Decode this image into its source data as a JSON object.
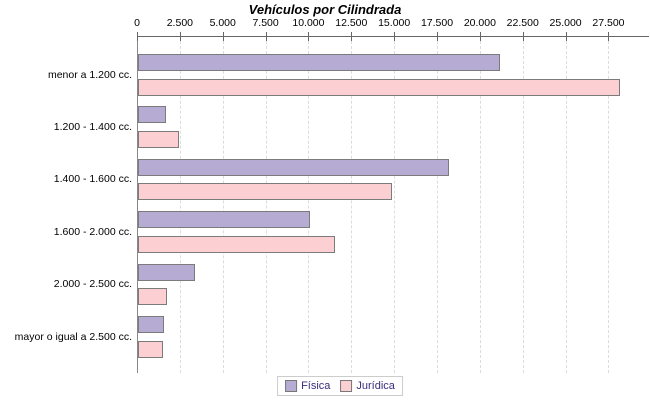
{
  "chart_data": {
    "type": "bar",
    "orientation": "horizontal",
    "title": "Vehículos por Cilindrada",
    "categories": [
      "menor a 1.200 cc.",
      "1.200 - 1.400 cc.",
      "1.400 - 1.600 cc.",
      "1.600 - 2.000 cc.",
      "2.000 - 2.500 cc.",
      "mayor o igual a 2.500 cc."
    ],
    "series": [
      {
        "name": "Física",
        "color": "#b5abd3",
        "values": [
          21000,
          1500,
          18000,
          9900,
          3200,
          1400
        ]
      },
      {
        "name": "Jurídica",
        "color": "#fccfd2",
        "values": [
          28000,
          2300,
          14700,
          11400,
          1600,
          1350
        ]
      }
    ],
    "x_ticks": [
      0,
      2500,
      5000,
      7500,
      10000,
      12500,
      15000,
      17500,
      20000,
      22500,
      25000,
      27500
    ],
    "x_tick_labels": [
      "0",
      "2.500",
      "5.000",
      "7.500",
      "10.000",
      "12.500",
      "15.000",
      "17.500",
      "20.000",
      "22.500",
      "25.000",
      "27.500"
    ],
    "xlim": [
      0,
      29800
    ],
    "grid": "vertical-dashed",
    "axis_position": "top",
    "legend_position": "bottom",
    "legend_text_color": "#3a2d7d",
    "bar_border_color": "#7b7b7b",
    "grid_color": "#dcdcdc"
  }
}
